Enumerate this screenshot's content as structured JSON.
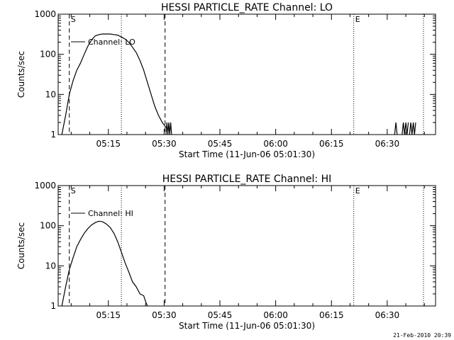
{
  "footer": {
    "date_stamp": "21-Feb-2010 20:39"
  },
  "colors": {
    "background": "#ffffff",
    "foreground": "#000000"
  },
  "chart_data": [
    {
      "type": "line",
      "title": "HESSI PARTICLE_RATE Channel: LO",
      "xlabel": "Start Time (11-Jun-06 05:01:30)",
      "ylabel": "Counts/sec",
      "legend": {
        "label": "Channel: LO",
        "placement": "top-left"
      },
      "yscale": "log",
      "ylim": [
        1,
        1000
      ],
      "yticks": [
        1,
        10,
        100,
        1000
      ],
      "ytick_labels": [
        "1",
        "10",
        "100",
        "1000"
      ],
      "xlim": [
        "05:01:30",
        "06:43:00"
      ],
      "xticks": [
        "05:15",
        "05:30",
        "05:45",
        "06:00",
        "06:15",
        "06:30"
      ],
      "markers": [
        {
          "label": "S",
          "x": "05:04:30",
          "style": "dashed"
        },
        {
          "label": "",
          "x": "05:30:15",
          "style": "dashed"
        },
        {
          "label": "E",
          "x": "06:21:00",
          "style": "dotted"
        },
        {
          "label": "",
          "x": "05:18:30",
          "style": "dotted"
        },
        {
          "label": "",
          "x": "06:39:45",
          "style": "dotted"
        }
      ],
      "series": [
        {
          "name": "Channel: LO",
          "segments": [
            {
              "x": [
                "05:02:30",
                "05:03:30",
                "05:04:30",
                "05:05:30",
                "05:06:30",
                "05:07:30",
                "05:08:30",
                "05:09:30",
                "05:10:30",
                "05:11:30",
                "05:12:30",
                "05:13:30",
                "05:14:30",
                "05:15:30",
                "05:16:30",
                "05:17:30",
                "05:18:30",
                "05:19:30",
                "05:20:30",
                "05:21:30",
                "05:22:30",
                "05:23:30",
                "05:24:30",
                "05:25:30",
                "05:26:30",
                "05:27:30",
                "05:28:30",
                "05:29:30",
                "05:30:30"
              ],
              "y": [
                1,
                3,
                10,
                22,
                40,
                60,
                100,
                160,
                230,
                290,
                310,
                320,
                320,
                320,
                310,
                300,
                270,
                240,
                200,
                150,
                110,
                70,
                40,
                20,
                10,
                5,
                3,
                2,
                1.5
              ]
            },
            {
              "x": [
                "05:30:30",
                "05:30:45",
                "05:31:00",
                "05:31:15",
                "05:31:30",
                "05:31:45",
                "05:32:00"
              ],
              "y": [
                1,
                2,
                1,
                2,
                1,
                2,
                1
              ]
            },
            {
              "x": [
                "06:32:00",
                "06:32:20",
                "06:32:40"
              ],
              "y": [
                1,
                2,
                1
              ]
            },
            {
              "x": [
                "06:34:00",
                "06:34:20",
                "06:34:40",
                "06:35:00",
                "06:35:20",
                "06:35:40"
              ],
              "y": [
                1,
                2,
                1,
                2,
                1,
                2
              ]
            },
            {
              "x": [
                "06:36:00",
                "06:36:20",
                "06:36:40",
                "06:37:00",
                "06:37:20",
                "06:37:40"
              ],
              "y": [
                1,
                2,
                1,
                2,
                1,
                2
              ]
            }
          ]
        }
      ]
    },
    {
      "type": "line",
      "title": "HESSI PARTICLE_RATE Channel: HI",
      "xlabel": "Start Time (11-Jun-06 05:01:30)",
      "ylabel": "Counts/sec",
      "legend": {
        "label": "Channel: HI",
        "placement": "top-left"
      },
      "yscale": "log",
      "ylim": [
        1,
        1000
      ],
      "yticks": [
        1,
        10,
        100,
        1000
      ],
      "ytick_labels": [
        "1",
        "10",
        "100",
        "1000"
      ],
      "xlim": [
        "05:01:30",
        "06:43:00"
      ],
      "xticks": [
        "05:15",
        "05:30",
        "05:45",
        "06:00",
        "06:15",
        "06:30"
      ],
      "markers": [
        {
          "label": "S",
          "x": "05:04:30",
          "style": "dashed"
        },
        {
          "label": "",
          "x": "05:30:15",
          "style": "dashed"
        },
        {
          "label": "E",
          "x": "06:21:00",
          "style": "dotted"
        },
        {
          "label": "",
          "x": "05:18:30",
          "style": "dotted"
        },
        {
          "label": "",
          "x": "06:39:45",
          "style": "dotted"
        }
      ],
      "series": [
        {
          "name": "Channel: HI",
          "segments": [
            {
              "x": [
                "05:02:30",
                "05:03:30",
                "05:04:30",
                "05:05:30",
                "05:06:30",
                "05:07:30",
                "05:08:30",
                "05:09:30",
                "05:10:30",
                "05:11:30",
                "05:12:30",
                "05:13:30",
                "05:14:30",
                "05:15:30",
                "05:16:30",
                "05:17:30",
                "05:18:30",
                "05:19:30",
                "05:20:30",
                "05:21:30",
                "05:22:30",
                "05:23:30",
                "05:24:30",
                "05:25:00",
                "05:25:30"
              ],
              "y": [
                1,
                3,
                8,
                16,
                30,
                45,
                65,
                85,
                105,
                120,
                130,
                125,
                110,
                90,
                65,
                40,
                22,
                12,
                7,
                4,
                3,
                2,
                1.8,
                1.3,
                1
              ]
            }
          ]
        }
      ]
    }
  ]
}
